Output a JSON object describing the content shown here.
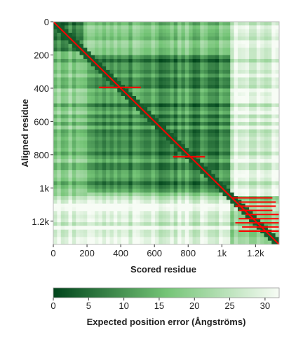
{
  "chart_data": {
    "type": "heatmap",
    "title": "",
    "xlabel": "Scored residue",
    "ylabel": "Aligned residue",
    "n_residues": 1340,
    "xlim": [
      0,
      1340
    ],
    "ylim": [
      0,
      1340
    ],
    "x_ticks": [
      {
        "value": 0,
        "label": "0"
      },
      {
        "value": 200,
        "label": "200"
      },
      {
        "value": 400,
        "label": "400"
      },
      {
        "value": 600,
        "label": "600"
      },
      {
        "value": 800,
        "label": "800"
      },
      {
        "value": 1000,
        "label": "1k"
      },
      {
        "value": 1200,
        "label": "1.2k"
      }
    ],
    "y_ticks": [
      {
        "value": 0,
        "label": "0"
      },
      {
        "value": 200,
        "label": "200"
      },
      {
        "value": 400,
        "label": "400"
      },
      {
        "value": 600,
        "label": "600"
      },
      {
        "value": 800,
        "label": "800"
      },
      {
        "value": 1000,
        "label": "1k"
      },
      {
        "value": 1200,
        "label": "1.2k"
      }
    ],
    "colorbar": {
      "label": "Expected position error (Ångströms)",
      "min": 0,
      "max": 32,
      "ticks": [
        {
          "value": 0,
          "label": "0"
        },
        {
          "value": 5,
          "label": "5"
        },
        {
          "value": 10,
          "label": "10"
        },
        {
          "value": 15,
          "label": "15"
        },
        {
          "value": 20,
          "label": "20"
        },
        {
          "value": 25,
          "label": "25"
        },
        {
          "value": 30,
          "label": "30"
        }
      ],
      "color_low": "#00441b",
      "color_mid": "#74c476",
      "color_high": "#f7fcf5"
    },
    "domain_blocks": [
      {
        "x_range": [
          0,
          180
        ],
        "y_range": [
          0,
          180
        ],
        "pae": 7
      },
      {
        "x_range": [
          190,
          1040
        ],
        "y_range": [
          190,
          1020
        ],
        "pae": 9
      },
      {
        "x_range": [
          1040,
          1340
        ],
        "y_range": [
          1040,
          1340
        ],
        "pae": 20
      },
      {
        "x_range": [
          0,
          1040
        ],
        "y_range": [
          1040,
          1340
        ],
        "pae": 29
      },
      {
        "x_range": [
          1040,
          1340
        ],
        "y_range": [
          0,
          1040
        ],
        "pae": 28
      }
    ],
    "diagonal_color": "#ff0000",
    "red_segments": [
      {
        "y": 395,
        "x_range": [
          270,
          520
        ]
      },
      {
        "y": 812,
        "x_range": [
          710,
          900
        ]
      },
      {
        "y": 1060,
        "x_range": [
          1060,
          1300
        ]
      },
      {
        "y": 1085,
        "x_range": [
          1100,
          1320
        ]
      },
      {
        "y": 1110,
        "x_range": [
          1080,
          1320
        ]
      },
      {
        "y": 1135,
        "x_range": [
          1100,
          1300
        ]
      },
      {
        "y": 1160,
        "x_range": [
          1140,
          1340
        ]
      },
      {
        "y": 1185,
        "x_range": [
          1100,
          1340
        ]
      },
      {
        "y": 1210,
        "x_range": [
          1080,
          1340
        ]
      },
      {
        "y": 1235,
        "x_range": [
          1120,
          1340
        ]
      },
      {
        "y": 1260,
        "x_range": [
          1100,
          1340
        ]
      }
    ]
  }
}
